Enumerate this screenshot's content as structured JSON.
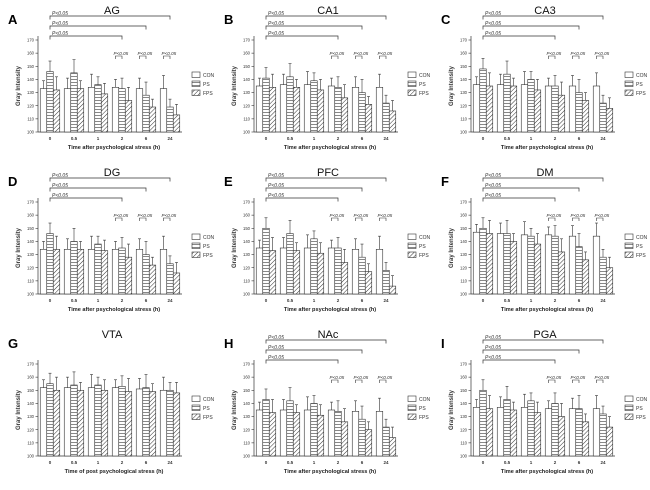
{
  "figure": {
    "series_names": [
      "CON",
      "PS",
      "FPS"
    ],
    "x_categories": [
      "0",
      "0.5",
      "1",
      "2",
      "6",
      "24"
    ],
    "y_axis_label": "Gray Intensity",
    "y_ticks": [
      100,
      110,
      120,
      130,
      140,
      150,
      160,
      170
    ],
    "sig_label": "P<0.05"
  },
  "chart_data": [
    {
      "letter": "A",
      "title": "AG",
      "type": "bar",
      "xlabel": "Time after psychological stress (h)",
      "ylim": [
        100,
        170
      ],
      "series": [
        {
          "name": "CON",
          "values": [
            133,
            133,
            134,
            134,
            133,
            133
          ]
        },
        {
          "name": "PS",
          "values": [
            146,
            145,
            136,
            133,
            128,
            119
          ]
        },
        {
          "name": "FPS",
          "values": [
            132,
            133,
            129,
            124,
            119,
            113
          ]
        }
      ],
      "brackets": [
        {
          "from": 0,
          "to": 5,
          "label": "P<0.05",
          "level": 3
        },
        {
          "from": 0,
          "to": 4,
          "label": "P<0.05",
          "level": 2
        },
        {
          "from": 0,
          "to": 3,
          "label": "P<0.05",
          "level": 1
        }
      ],
      "pair_brackets": [
        {
          "group": 3,
          "label": "P<0.05"
        },
        {
          "group": 4,
          "label": "P<0.05"
        },
        {
          "group": 5,
          "label": "P<0.05"
        }
      ]
    },
    {
      "letter": "B",
      "title": "CA1",
      "type": "bar",
      "xlabel": "Time after psychological stress (h)",
      "ylim": [
        100,
        170
      ],
      "series": [
        {
          "name": "CON",
          "values": [
            135,
            136,
            136,
            135,
            134,
            134
          ]
        },
        {
          "name": "PS",
          "values": [
            141,
            142,
            139,
            134,
            130,
            122
          ]
        },
        {
          "name": "FPS",
          "values": [
            134,
            134,
            132,
            126,
            121,
            116
          ]
        }
      ],
      "brackets": [
        {
          "from": 0,
          "to": 5,
          "label": "P<0.05",
          "level": 3
        },
        {
          "from": 0,
          "to": 4,
          "label": "P<0.05",
          "level": 2
        },
        {
          "from": 0,
          "to": 3,
          "label": "P<0.05",
          "level": 1
        }
      ],
      "pair_brackets": [
        {
          "group": 3,
          "label": "P<0.05"
        },
        {
          "group": 4,
          "label": "P<0.05"
        },
        {
          "group": 5,
          "label": "P<0.05"
        }
      ]
    },
    {
      "letter": "C",
      "title": "CA3",
      "type": "bar",
      "xlabel": "Time after psychological stress (h)",
      "ylim": [
        100,
        170
      ],
      "series": [
        {
          "name": "CON",
          "values": [
            136,
            136,
            136,
            135,
            135,
            135
          ]
        },
        {
          "name": "PS",
          "values": [
            148,
            144,
            140,
            135,
            130,
            122
          ]
        },
        {
          "name": "FPS",
          "values": [
            135,
            135,
            132,
            128,
            124,
            118
          ]
        }
      ],
      "brackets": [
        {
          "from": 0,
          "to": 5,
          "label": "P<0.05",
          "level": 3
        },
        {
          "from": 0,
          "to": 4,
          "label": "P<0.05",
          "level": 2
        },
        {
          "from": 0,
          "to": 3,
          "label": "P<0.05",
          "level": 1
        }
      ],
      "pair_brackets": [
        {
          "group": 3,
          "label": "P<0.05"
        },
        {
          "group": 4,
          "label": "P<0.05"
        },
        {
          "group": 5,
          "label": "P<0.05"
        }
      ]
    },
    {
      "letter": "D",
      "title": "DG",
      "type": "bar",
      "xlabel": "Time after psychological stress (h)",
      "ylim": [
        100,
        170
      ],
      "series": [
        {
          "name": "CON",
          "values": [
            134,
            134,
            134,
            134,
            134,
            134
          ]
        },
        {
          "name": "PS",
          "values": [
            146,
            140,
            138,
            135,
            130,
            123
          ]
        },
        {
          "name": "FPS",
          "values": [
            134,
            134,
            133,
            128,
            122,
            116
          ]
        }
      ],
      "brackets": [
        {
          "from": 0,
          "to": 5,
          "label": "P<0.05",
          "level": 3
        },
        {
          "from": 0,
          "to": 4,
          "label": "P<0.05",
          "level": 2
        },
        {
          "from": 0,
          "to": 3,
          "label": "P<0.05",
          "level": 1
        }
      ],
      "pair_brackets": [
        {
          "group": 3,
          "label": "P<0.05"
        },
        {
          "group": 4,
          "label": "P<0.05"
        },
        {
          "group": 5,
          "label": "P<0.05"
        }
      ]
    },
    {
      "letter": "E",
      "title": "PFC",
      "type": "bar",
      "xlabel": "Time after psychological stress (h)",
      "ylim": [
        100,
        170
      ],
      "series": [
        {
          "name": "CON",
          "values": [
            135,
            135,
            135,
            135,
            134,
            134
          ]
        },
        {
          "name": "PS",
          "values": [
            150,
            146,
            142,
            135,
            128,
            118
          ]
        },
        {
          "name": "FPS",
          "values": [
            133,
            133,
            131,
            124,
            117,
            106
          ]
        }
      ],
      "brackets": [
        {
          "from": 0,
          "to": 5,
          "label": "P<0.05",
          "level": 3
        },
        {
          "from": 0,
          "to": 4,
          "label": "P<0.05",
          "level": 2
        },
        {
          "from": 0,
          "to": 3,
          "label": "P<0.05",
          "level": 1
        }
      ],
      "pair_brackets": [
        {
          "group": 3,
          "label": "P<0.05"
        },
        {
          "group": 4,
          "label": "P<0.05"
        },
        {
          "group": 5,
          "label": "P<0.05"
        }
      ]
    },
    {
      "letter": "F",
      "title": "DM",
      "type": "bar",
      "xlabel": "Time after psychological stress (h)",
      "ylim": [
        100,
        170
      ],
      "series": [
        {
          "name": "CON",
          "values": [
            147,
            146,
            145,
            145,
            144,
            144
          ]
        },
        {
          "name": "PS",
          "values": [
            150,
            146,
            144,
            144,
            136,
            128
          ]
        },
        {
          "name": "FPS",
          "values": [
            146,
            140,
            138,
            132,
            126,
            120
          ]
        }
      ],
      "brackets": [
        {
          "from": 0,
          "to": 5,
          "label": "P<0.05",
          "level": 3
        },
        {
          "from": 0,
          "to": 4,
          "label": "P<0.05",
          "level": 2
        },
        {
          "from": 0,
          "to": 3,
          "label": "P<0.05",
          "level": 1
        }
      ],
      "pair_brackets": [
        {
          "group": 3,
          "label": "P<0.05"
        },
        {
          "group": 4,
          "label": "P<0.05"
        },
        {
          "group": 5,
          "label": "P<0.05"
        }
      ]
    },
    {
      "letter": "G",
      "title": "VTA",
      "type": "bar",
      "xlabel": "Time of post psychological stress (h)",
      "ylim": [
        100,
        170
      ],
      "series": [
        {
          "name": "CON",
          "values": [
            152,
            152,
            152,
            152,
            151,
            150
          ]
        },
        {
          "name": "PS",
          "values": [
            155,
            154,
            154,
            153,
            152,
            150
          ]
        },
        {
          "name": "FPS",
          "values": [
            150,
            150,
            150,
            149,
            149,
            148
          ]
        }
      ],
      "brackets": [],
      "pair_brackets": []
    },
    {
      "letter": "H",
      "title": "NAc",
      "type": "bar",
      "xlabel": "Time after psychological stress (h)",
      "ylim": [
        100,
        170
      ],
      "series": [
        {
          "name": "CON",
          "values": [
            135,
            135,
            135,
            135,
            134,
            134
          ]
        },
        {
          "name": "PS",
          "values": [
            143,
            142,
            140,
            134,
            128,
            122
          ]
        },
        {
          "name": "FPS",
          "values": [
            133,
            133,
            131,
            126,
            120,
            114
          ]
        }
      ],
      "brackets": [
        {
          "from": 0,
          "to": 5,
          "label": "P<0.05",
          "level": 3
        },
        {
          "from": 0,
          "to": 4,
          "label": "P<0.05",
          "level": 2
        },
        {
          "from": 0,
          "to": 3,
          "label": "P<0.05",
          "level": 1
        }
      ],
      "pair_brackets": [
        {
          "group": 3,
          "label": "P<0.05"
        },
        {
          "group": 4,
          "label": "P<0.05"
        },
        {
          "group": 5,
          "label": "P<0.05"
        }
      ]
    },
    {
      "letter": "I",
      "title": "PGA",
      "type": "bar",
      "xlabel": "Time after psychological stress (h)",
      "ylim": [
        100,
        170
      ],
      "series": [
        {
          "name": "CON",
          "values": [
            137,
            137,
            137,
            136,
            136,
            136
          ]
        },
        {
          "name": "PS",
          "values": [
            150,
            143,
            142,
            140,
            136,
            132
          ]
        },
        {
          "name": "FPS",
          "values": [
            136,
            135,
            133,
            130,
            126,
            122
          ]
        }
      ],
      "brackets": [
        {
          "from": 0,
          "to": 5,
          "label": "P<0.05",
          "level": 3
        },
        {
          "from": 0,
          "to": 4,
          "label": "P<0.05",
          "level": 2
        },
        {
          "from": 0,
          "to": 3,
          "label": "P<0.05",
          "level": 1
        }
      ],
      "pair_brackets": [
        {
          "group": 3,
          "label": "P<0.05"
        },
        {
          "group": 4,
          "label": "P<0.05"
        },
        {
          "group": 5,
          "label": "P<0.05"
        }
      ]
    }
  ]
}
